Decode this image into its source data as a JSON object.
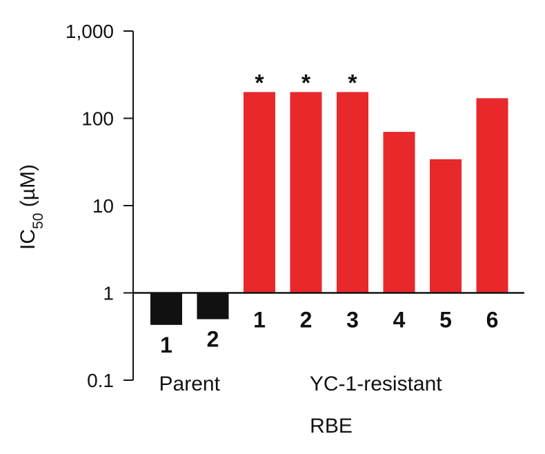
{
  "chart_data": {
    "type": "bar",
    "yscale": "log",
    "ylim": [
      0.1,
      1000
    ],
    "baseline": 1,
    "yticks": [
      0.1,
      1,
      10,
      100,
      1000
    ],
    "ytick_labels": [
      "0.1",
      "1",
      "10",
      "100",
      "1,000"
    ],
    "ylabel_main": "IC",
    "ylabel_sub": "50",
    "ylabel_unit": " (µM)",
    "xlabel": "RBE",
    "groups": [
      {
        "label": "Parent",
        "color": "#111111",
        "bars": [
          {
            "label": "1",
            "value": 0.43,
            "star": false
          },
          {
            "label": "2",
            "value": 0.5,
            "star": false
          }
        ]
      },
      {
        "label": "YC-1-resistant",
        "color": "#e8282b",
        "bars": [
          {
            "label": "1",
            "value": 200,
            "star": true
          },
          {
            "label": "2",
            "value": 200,
            "star": true
          },
          {
            "label": "3",
            "value": 200,
            "star": true
          },
          {
            "label": "4",
            "value": 70,
            "star": false
          },
          {
            "label": "5",
            "value": 34,
            "star": false
          },
          {
            "label": "6",
            "value": 170,
            "star": false
          }
        ]
      }
    ],
    "star_symbol": "*",
    "grid": false,
    "legend": "none"
  }
}
